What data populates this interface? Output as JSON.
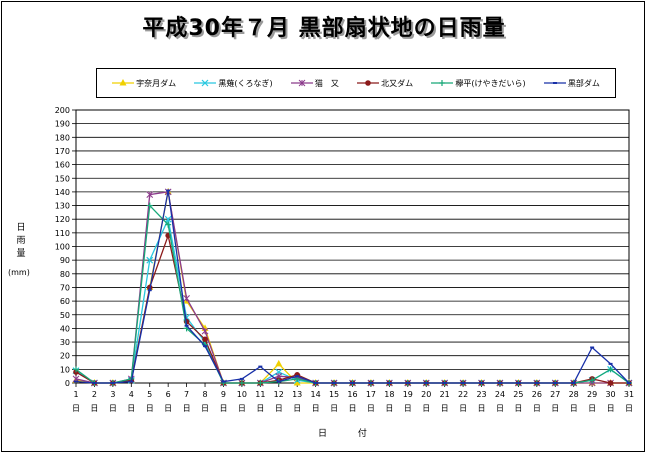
{
  "chart_data": {
    "type": "line",
    "title": "平成30年７月 黒部扇状地の日雨量",
    "ylabel": "日雨量",
    "yunit": "(mm)",
    "xlabel": "日 付",
    "ylim": [
      0,
      200
    ],
    "yticks": [
      0,
      10,
      20,
      30,
      40,
      50,
      60,
      70,
      80,
      90,
      100,
      110,
      120,
      130,
      140,
      150,
      160,
      170,
      180,
      190,
      200
    ],
    "x": [
      1,
      2,
      3,
      4,
      5,
      6,
      7,
      8,
      9,
      10,
      11,
      12,
      13,
      14,
      15,
      16,
      17,
      18,
      19,
      20,
      21,
      22,
      23,
      24,
      25,
      26,
      27,
      28,
      29,
      30,
      31
    ],
    "x_suffix": "日",
    "grid": true,
    "legend_position": "top",
    "series": [
      {
        "name": "宇奈月ダム",
        "color": "#f0d000",
        "marker": "triangle",
        "values": [
          2,
          0,
          0,
          2,
          70,
          140,
          60,
          40,
          0,
          0,
          0,
          14,
          0,
          0,
          0,
          0,
          0,
          0,
          0,
          0,
          0,
          0,
          0,
          0,
          0,
          0,
          0,
          0,
          0,
          0,
          0
        ]
      },
      {
        "name": "黒薙(くろなぎ)",
        "color": "#29c8e0",
        "marker": "x",
        "values": [
          9,
          0,
          0,
          2,
          90,
          120,
          48,
          30,
          0,
          0,
          0,
          8,
          2,
          0,
          0,
          0,
          0,
          0,
          0,
          0,
          0,
          0,
          0,
          0,
          0,
          0,
          0,
          0,
          2,
          10,
          0
        ]
      },
      {
        "name": "猫　又",
        "color": "#8b3a8b",
        "marker": "asterisk",
        "values": [
          3,
          0,
          0,
          3,
          138,
          140,
          62,
          38,
          0,
          0,
          0,
          5,
          4,
          0,
          0,
          0,
          0,
          0,
          0,
          0,
          0,
          0,
          0,
          0,
          0,
          0,
          0,
          0,
          0,
          0,
          0
        ]
      },
      {
        "name": "北又ダム",
        "color": "#8b1a1a",
        "marker": "circle",
        "values": [
          8,
          0,
          0,
          2,
          70,
          108,
          45,
          32,
          0,
          0,
          0,
          2,
          6,
          0,
          0,
          0,
          0,
          0,
          0,
          0,
          0,
          0,
          0,
          0,
          0,
          0,
          0,
          0,
          3,
          0,
          0
        ]
      },
      {
        "name": "欅平(けやきだいら)",
        "color": "#18a878",
        "marker": "plus",
        "values": [
          10,
          0,
          0,
          3,
          130,
          116,
          40,
          28,
          0,
          0,
          0,
          1,
          3,
          0,
          0,
          0,
          0,
          0,
          0,
          0,
          0,
          0,
          0,
          0,
          0,
          0,
          0,
          0,
          2,
          10,
          0
        ]
      },
      {
        "name": "黒部ダム",
        "color": "#1830a8",
        "marker": "dash",
        "values": [
          1,
          0,
          0,
          1,
          68,
          141,
          42,
          27,
          1,
          3,
          12,
          1,
          5,
          0,
          0,
          0,
          0,
          0,
          0,
          0,
          0,
          0,
          0,
          0,
          0,
          0,
          0,
          0,
          26,
          14,
          0
        ]
      }
    ]
  }
}
